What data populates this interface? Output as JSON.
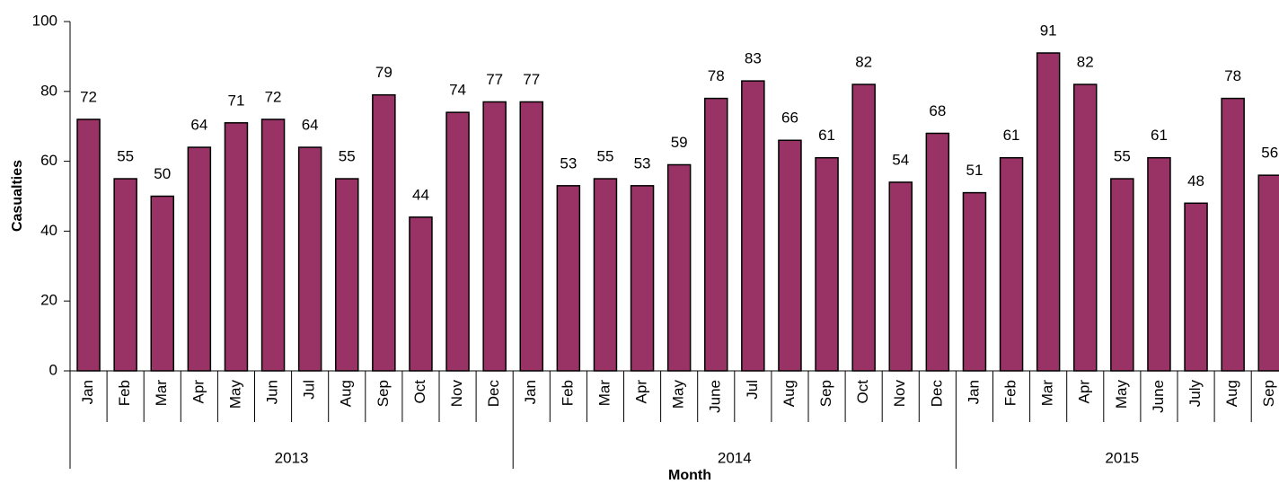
{
  "chart_data": {
    "type": "bar",
    "y_label": "Casualties",
    "x_label": "Month",
    "color": "#993366",
    "ylim": [
      0,
      100
    ],
    "yticks": [
      0,
      20,
      40,
      60,
      80,
      100
    ],
    "groups": [
      {
        "name": "2013",
        "categories": [
          "Jan",
          "Feb",
          "Mar",
          "Apr",
          "May",
          "Jun",
          "Jul",
          "Aug",
          "Sep",
          "Oct",
          "Nov",
          "Dec"
        ],
        "values": [
          72,
          55,
          50,
          64,
          71,
          72,
          64,
          55,
          79,
          44,
          74,
          77
        ]
      },
      {
        "name": "2014",
        "categories": [
          "Jan",
          "Feb",
          "Mar",
          "Apr",
          "May",
          "June",
          "Jul",
          "Aug",
          "Sep",
          "Oct",
          "Nov",
          "Dec"
        ],
        "values": [
          77,
          53,
          55,
          53,
          59,
          78,
          83,
          66,
          61,
          82,
          54,
          68
        ]
      },
      {
        "name": "2015",
        "categories": [
          "Jan",
          "Feb",
          "Mar",
          "Apr",
          "May",
          "June",
          "July",
          "Aug",
          "Sep"
        ],
        "values": [
          51,
          61,
          91,
          82,
          55,
          61,
          48,
          78,
          56
        ]
      }
    ]
  }
}
